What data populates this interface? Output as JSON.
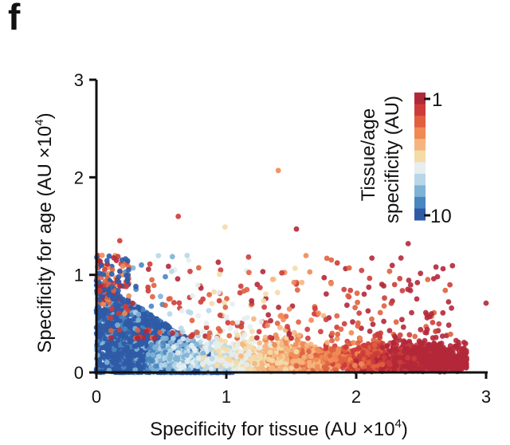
{
  "panel_label": "f",
  "chart_data": {
    "type": "scatter",
    "title": "",
    "xlabel": "Specificity for tissue (AU ×10",
    "xlabel_sup": "4",
    "xlabel_end": ")",
    "ylabel": "Specificity for age (AU ×10",
    "ylabel_sup": "4",
    "ylabel_end": ")",
    "xlim": [
      0,
      3
    ],
    "ylim": [
      0,
      3
    ],
    "xticks": [
      "0",
      "1",
      "2",
      "3"
    ],
    "yticks": [
      "0",
      "1",
      "2",
      "3"
    ],
    "grid": false,
    "colorbar": {
      "title_line1": "Tissue/age",
      "title_line2": "specificity (AU)",
      "top_label": "1",
      "bottom_label": "10",
      "colors_top_to_bottom": [
        "#b2283a",
        "#cd3c3a",
        "#e0603f",
        "#ef8a55",
        "#f5b57f",
        "#f4dca8",
        "#e6eef0",
        "#b7d7e8",
        "#7fb3d6",
        "#4a86c0",
        "#2f5aa6"
      ]
    },
    "point_density_notes": "Thousands of points; blue (ratio ~10) dense near origin, red (ratio ~1) along x from 1.5 to 3 with y below 0.6",
    "outliers": [
      {
        "x": 1.4,
        "y": 2.07,
        "color": "#ef8a55"
      },
      {
        "x": 0.63,
        "y": 1.6,
        "color": "#cd3c3a"
      },
      {
        "x": 1.54,
        "y": 1.47,
        "color": "#b2283a"
      },
      {
        "x": 0.99,
        "y": 1.49,
        "color": "#f4dca8"
      },
      {
        "x": 2.4,
        "y": 1.32,
        "color": "#b2283a"
      },
      {
        "x": 0.18,
        "y": 1.35,
        "color": "#cd3c3a"
      },
      {
        "x": 3.0,
        "y": 0.71,
        "color": "#b2283a"
      }
    ]
  }
}
